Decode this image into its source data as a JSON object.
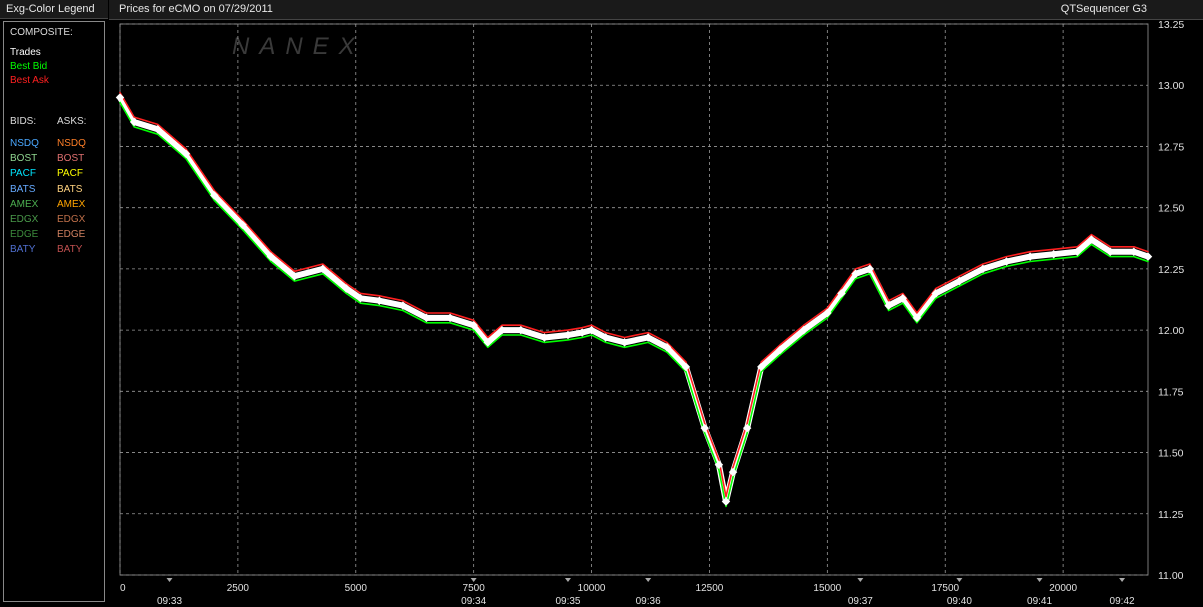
{
  "legend": {
    "title": "Exg-Color Legend",
    "composite_label": "COMPOSITE:",
    "composite": [
      {
        "label": "Trades",
        "color": "#ffffff"
      },
      {
        "label": "Best Bid",
        "color": "#00ff00"
      },
      {
        "label": "Best Ask",
        "color": "#ff2020"
      }
    ],
    "bids_label": "BIDS:",
    "asks_label": "ASKS:",
    "exchanges": [
      {
        "bid": "NSDQ",
        "ask": "NSDQ",
        "bid_color": "#4aa8ff",
        "ask_color": "#ff7f27"
      },
      {
        "bid": "BOST",
        "ask": "BOST",
        "bid_color": "#8fd48f",
        "ask_color": "#e07070"
      },
      {
        "bid": "PACF",
        "ask": "PACF",
        "bid_color": "#00e5ff",
        "ask_color": "#ffff00"
      },
      {
        "bid": "BATS",
        "ask": "BATS",
        "bid_color": "#66aaff",
        "ask_color": "#ffd27f"
      },
      {
        "bid": "AMEX",
        "ask": "AMEX",
        "bid_color": "#4caf50",
        "ask_color": "#ffa500"
      },
      {
        "bid": "EDGX",
        "ask": "EDGX",
        "bid_color": "#4a9a4a",
        "ask_color": "#c0704a"
      },
      {
        "bid": "EDGE",
        "ask": "EDGE",
        "bid_color": "#3c8c3c",
        "ask_color": "#d08060"
      },
      {
        "bid": "BATY",
        "ask": "BATY",
        "bid_color": "#5070d0",
        "ask_color": "#c05050"
      }
    ]
  },
  "header": {
    "title": "Prices for  eCMO  on  07/29/2011",
    "app_name": "QTSequencer G3"
  },
  "watermark": "NANEX",
  "chart_data": {
    "type": "line",
    "title": "Prices for  eCMO  on  07/29/2011",
    "xlabel": "",
    "ylabel": "",
    "xlim": [
      0,
      21800
    ],
    "ylim": [
      11.0,
      13.25
    ],
    "y_ticks": [
      "11.00",
      "11.25",
      "11.50",
      "11.75",
      "12.00",
      "12.25",
      "12.50",
      "12.75",
      "13.00",
      "13.25"
    ],
    "x_ticks": [
      {
        "value": 0,
        "label": "0"
      },
      {
        "value": 2500,
        "label": "2500"
      },
      {
        "value": 5000,
        "label": "5000"
      },
      {
        "value": 7500,
        "label": "7500"
      },
      {
        "value": 10000,
        "label": "10000"
      },
      {
        "value": 12500,
        "label": "12500"
      },
      {
        "value": 15000,
        "label": "15000"
      },
      {
        "value": 17500,
        "label": "17500"
      },
      {
        "value": 20000,
        "label": "20000"
      }
    ],
    "time_labels": [
      {
        "value": 1050,
        "label": "09:33"
      },
      {
        "value": 7500,
        "label": "09:34"
      },
      {
        "value": 9500,
        "label": "09:35"
      },
      {
        "value": 11200,
        "label": "09:36"
      },
      {
        "value": 15700,
        "label": "09:37"
      },
      {
        "value": 17800,
        "label": "09:40"
      },
      {
        "value": 19500,
        "label": "09:41"
      },
      {
        "value": 21250,
        "label": "09:42"
      }
    ],
    "grid": true,
    "series": [
      {
        "name": "Trades",
        "color": "#ffffff",
        "x": [
          0,
          300,
          800,
          1400,
          2000,
          2600,
          3200,
          3700,
          4300,
          4800,
          5100,
          5500,
          6000,
          6500,
          7000,
          7500,
          7800,
          8100,
          8500,
          9000,
          9500,
          9800,
          10000,
          10300,
          10700,
          11200,
          11600,
          12000,
          12400,
          12700,
          12850,
          13000,
          13300,
          13600,
          14000,
          14500,
          15000,
          15300,
          15600,
          15900,
          16300,
          16600,
          16900,
          17300,
          17800,
          18300,
          18800,
          19300,
          19800,
          20300,
          20600,
          21000,
          21500,
          21800
        ],
        "y": [
          12.95,
          12.85,
          12.82,
          12.72,
          12.55,
          12.43,
          12.3,
          12.22,
          12.25,
          12.17,
          12.13,
          12.12,
          12.1,
          12.05,
          12.05,
          12.02,
          11.95,
          12.0,
          12.0,
          11.97,
          11.98,
          11.99,
          12.0,
          11.97,
          11.95,
          11.97,
          11.93,
          11.85,
          11.6,
          11.45,
          11.3,
          11.42,
          11.6,
          11.85,
          11.92,
          12.0,
          12.07,
          12.15,
          12.23,
          12.25,
          12.1,
          12.13,
          12.05,
          12.15,
          12.2,
          12.25,
          12.28,
          12.3,
          12.31,
          12.32,
          12.37,
          12.32,
          12.32,
          12.3
        ]
      },
      {
        "name": "Best Bid",
        "color": "#00ff00",
        "x": [
          0,
          300,
          800,
          1400,
          2000,
          2600,
          3200,
          3700,
          4300,
          4800,
          5100,
          5500,
          6000,
          6500,
          7000,
          7500,
          7800,
          8100,
          8500,
          9000,
          9500,
          9800,
          10000,
          10300,
          10700,
          11200,
          11600,
          12000,
          12400,
          12700,
          12850,
          13000,
          13300,
          13600,
          14000,
          14500,
          15000,
          15300,
          15600,
          15900,
          16300,
          16600,
          16900,
          17300,
          17800,
          18300,
          18800,
          19300,
          19800,
          20300,
          20600,
          21000,
          21500,
          21800
        ],
        "y": [
          12.93,
          12.83,
          12.8,
          12.7,
          12.53,
          12.41,
          12.28,
          12.2,
          12.23,
          12.15,
          12.11,
          12.1,
          12.08,
          12.03,
          12.03,
          12.0,
          11.93,
          11.98,
          11.98,
          11.95,
          11.96,
          11.97,
          11.98,
          11.95,
          11.93,
          11.95,
          11.91,
          11.83,
          11.58,
          11.43,
          11.28,
          11.4,
          11.58,
          11.83,
          11.9,
          11.98,
          12.05,
          12.13,
          12.21,
          12.23,
          12.08,
          12.11,
          12.03,
          12.13,
          12.18,
          12.23,
          12.26,
          12.28,
          12.29,
          12.3,
          12.35,
          12.3,
          12.3,
          12.28
        ]
      },
      {
        "name": "Best Ask",
        "color": "#ff2020",
        "x": [
          0,
          300,
          800,
          1400,
          2000,
          2600,
          3200,
          3700,
          4300,
          4800,
          5100,
          5500,
          6000,
          6500,
          7000,
          7500,
          7800,
          8100,
          8500,
          9000,
          9500,
          9800,
          10000,
          10300,
          10700,
          11200,
          11600,
          12000,
          12400,
          12700,
          12850,
          13000,
          13300,
          13600,
          14000,
          14500,
          15000,
          15300,
          15600,
          15900,
          16300,
          16600,
          16900,
          17300,
          17800,
          18300,
          18800,
          19300,
          19800,
          20300,
          20600,
          21000,
          21500,
          21800
        ],
        "y": [
          12.97,
          12.87,
          12.84,
          12.74,
          12.57,
          12.45,
          12.32,
          12.24,
          12.27,
          12.19,
          12.15,
          12.14,
          12.12,
          12.07,
          12.07,
          12.04,
          11.97,
          12.02,
          12.02,
          11.99,
          12.0,
          12.01,
          12.02,
          11.99,
          11.97,
          11.99,
          11.95,
          11.87,
          11.62,
          11.47,
          11.32,
          11.44,
          11.62,
          11.87,
          11.94,
          12.02,
          12.09,
          12.17,
          12.25,
          12.27,
          12.12,
          12.15,
          12.07,
          12.17,
          12.22,
          12.27,
          12.3,
          12.32,
          12.33,
          12.34,
          12.39,
          12.34,
          12.34,
          12.32
        ]
      }
    ]
  }
}
